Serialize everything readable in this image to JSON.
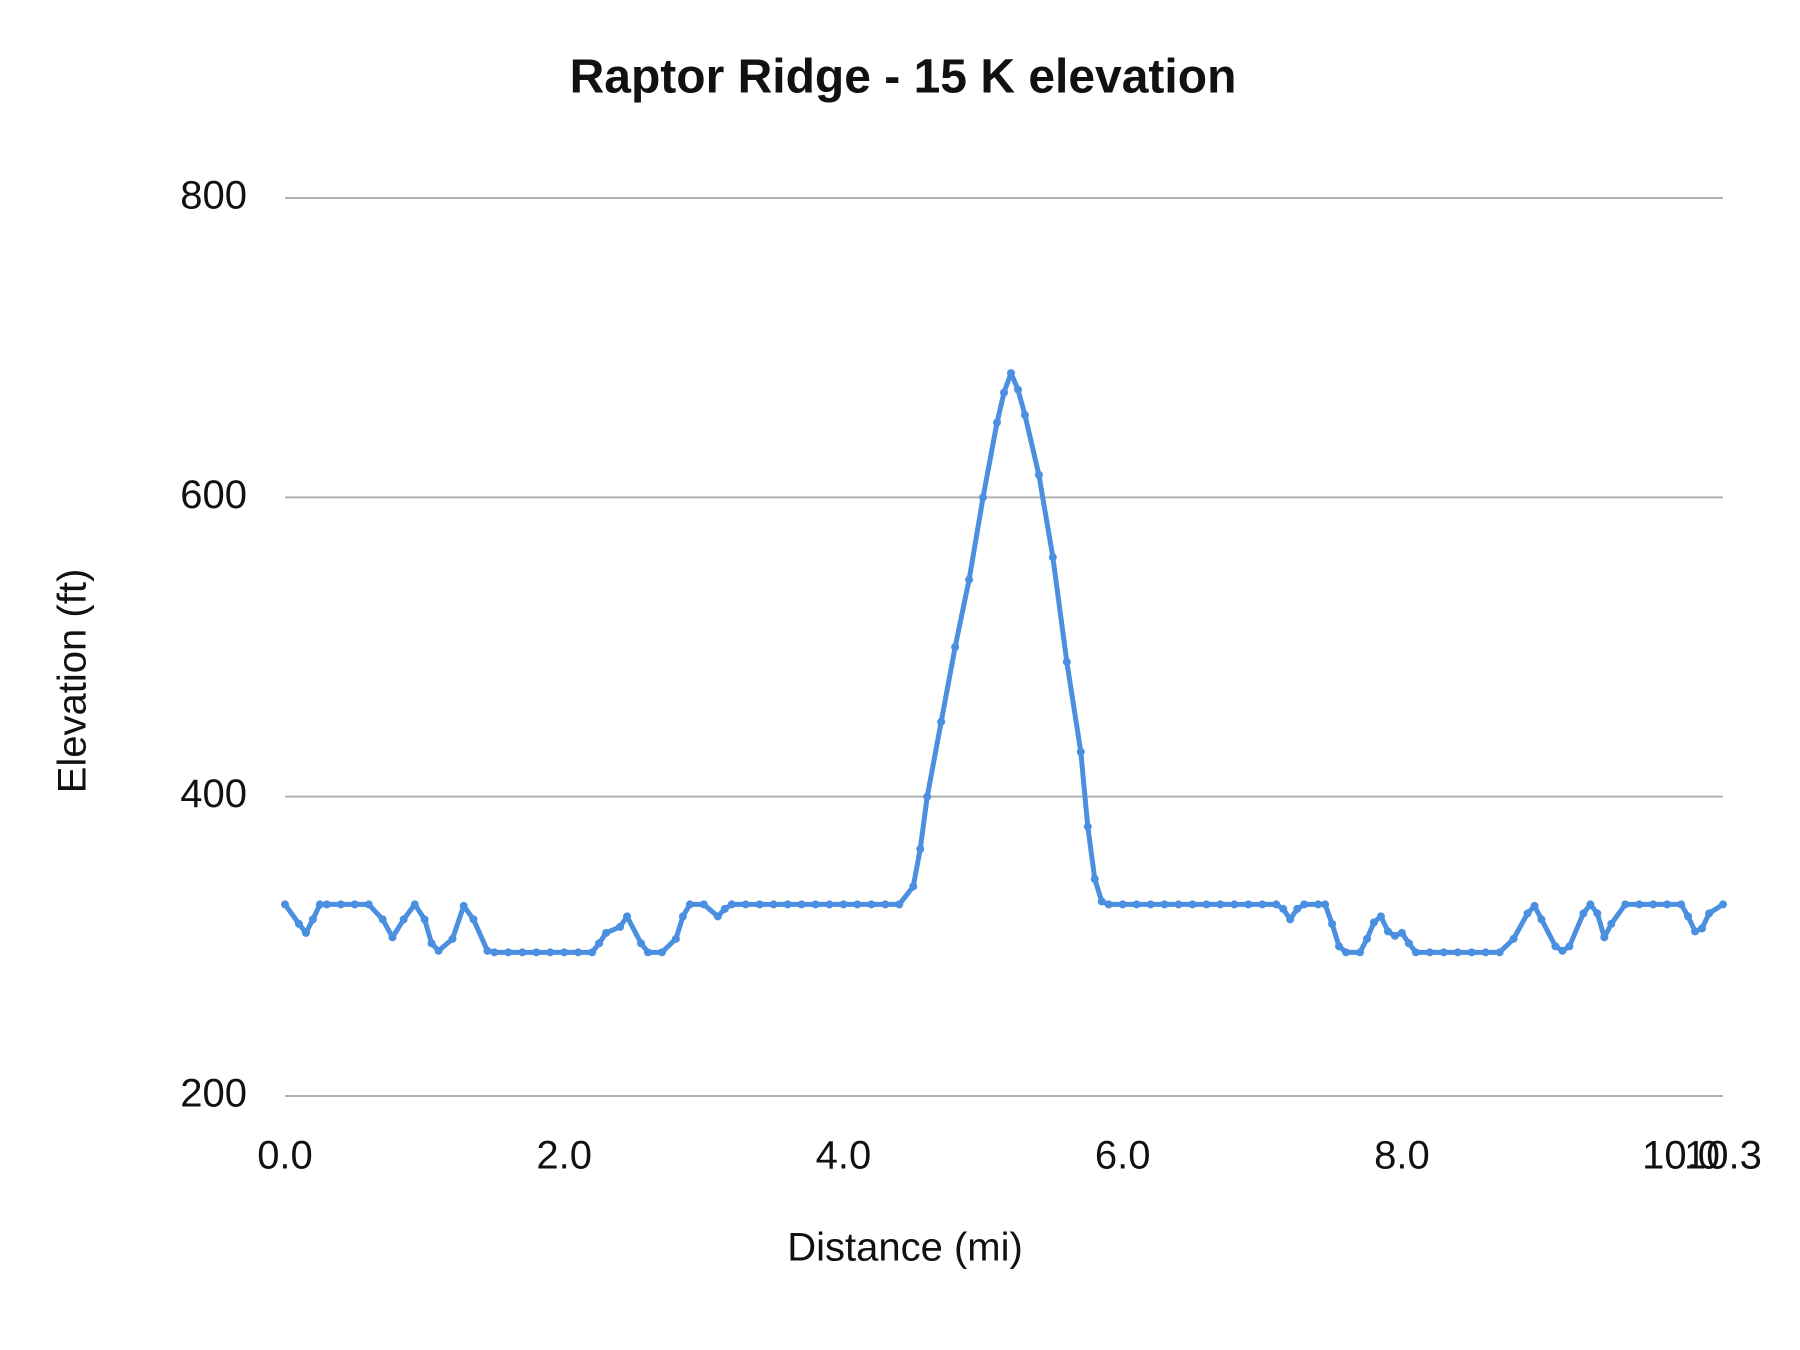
{
  "chart_data": {
    "type": "line",
    "title": "Raptor Ridge - 15 K elevation",
    "x_label": "Distance (mi)",
    "y_label": "Elevation (ft)",
    "color": "#4a8fe0",
    "grid": true,
    "xlim": [
      0,
      10.3
    ],
    "ylim": [
      200,
      800
    ],
    "xticks": [
      {
        "value": 0,
        "label": "0.0"
      },
      {
        "value": 2,
        "label": "2.0"
      },
      {
        "value": 4,
        "label": "4.0"
      },
      {
        "value": 6,
        "label": "6.0"
      },
      {
        "value": 8,
        "label": "8.0"
      },
      {
        "value": 10,
        "label": "10.0"
      },
      10.3
    ],
    "yticks": [
      200,
      400,
      600,
      800
    ],
    "x": [
      0,
      0.1,
      0.15,
      0.2,
      0.25,
      0.3,
      0.4,
      0.5,
      0.6,
      0.7,
      0.77,
      0.85,
      0.93,
      1.0,
      1.05,
      1.1,
      1.2,
      1.28,
      1.35,
      1.45,
      1.5,
      1.6,
      1.7,
      1.8,
      1.9,
      2.0,
      2.1,
      2.2,
      2.25,
      2.3,
      2.4,
      2.45,
      2.55,
      2.6,
      2.7,
      2.8,
      2.85,
      2.9,
      3.0,
      3.1,
      3.15,
      3.2,
      3.3,
      3.4,
      3.5,
      3.6,
      3.7,
      3.8,
      3.9,
      4.0,
      4.1,
      4.2,
      4.3,
      4.4,
      4.5,
      4.55,
      4.6,
      4.7,
      4.8,
      4.9,
      5.0,
      5.1,
      5.15,
      5.2,
      5.25,
      5.3,
      5.4,
      5.5,
      5.6,
      5.7,
      5.75,
      5.8,
      5.85,
      5.9,
      6.0,
      6.1,
      6.2,
      6.3,
      6.4,
      6.5,
      6.6,
      6.7,
      6.8,
      6.9,
      7.0,
      7.1,
      7.15,
      7.2,
      7.25,
      7.3,
      7.4,
      7.45,
      7.5,
      7.55,
      7.6,
      7.7,
      7.75,
      7.8,
      7.85,
      7.9,
      7.95,
      8.0,
      8.05,
      8.1,
      8.2,
      8.3,
      8.4,
      8.5,
      8.6,
      8.7,
      8.8,
      8.9,
      8.95,
      9.0,
      9.1,
      9.15,
      9.2,
      9.3,
      9.35,
      9.4,
      9.45,
      9.5,
      9.6,
      9.7,
      9.8,
      9.9,
      10.0,
      10.05,
      10.1,
      10.15,
      10.2,
      10.3
    ],
    "values": [
      328,
      315,
      309,
      318,
      328,
      328,
      328,
      328,
      328,
      318,
      306,
      318,
      328,
      318,
      302,
      297,
      305,
      327,
      318,
      297,
      296,
      296,
      296,
      296,
      296,
      296,
      296,
      296,
      302,
      309,
      313,
      320,
      302,
      296,
      296,
      305,
      320,
      328,
      328,
      320,
      325,
      328,
      328,
      328,
      328,
      328,
      328,
      328,
      328,
      328,
      328,
      328,
      328,
      328,
      340,
      365,
      400,
      450,
      500,
      545,
      600,
      650,
      670,
      683,
      672,
      655,
      615,
      560,
      490,
      430,
      380,
      345,
      330,
      328,
      328,
      328,
      328,
      328,
      328,
      328,
      328,
      328,
      328,
      328,
      328,
      328,
      325,
      318,
      325,
      328,
      328,
      328,
      315,
      300,
      296,
      296,
      305,
      316,
      320,
      310,
      307,
      309,
      302,
      296,
      296,
      296,
      296,
      296,
      296,
      296,
      305,
      322,
      327,
      318,
      300,
      297,
      300,
      322,
      328,
      322,
      306,
      315,
      328,
      328,
      328,
      328,
      328,
      320,
      310,
      312,
      322,
      328
    ]
  }
}
